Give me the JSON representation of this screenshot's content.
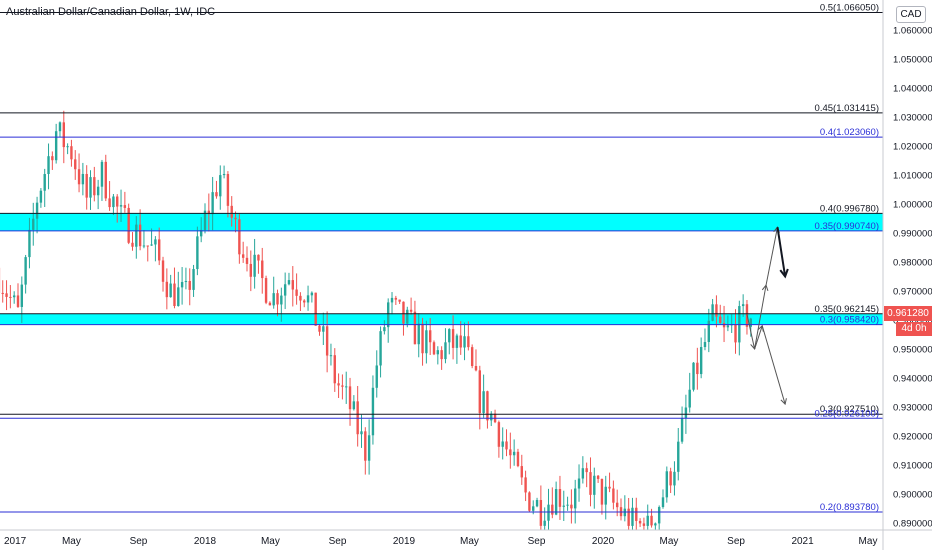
{
  "header": {
    "title": "Australian Dollar/Canadian Dollar, 1W, IDC",
    "currency": "CAD"
  },
  "price_badge": {
    "value": "0.961280",
    "countdown": "4d 0h"
  },
  "colors": {
    "up": "#26a69a",
    "down": "#ef5350",
    "zone": "#00ffff",
    "fib": "#2a2ed6",
    "line": "#131722",
    "axis_text": "#131722"
  },
  "chart_data": {
    "type": "candlestick",
    "title": "Australian Dollar/Canadian Dollar, 1W, IDC",
    "ylim": [
      0.888,
      1.069
    ],
    "y_ticks": [
      "1.060000",
      "1.050000",
      "1.040000",
      "1.030000",
      "1.020000",
      "1.010000",
      "1.000000",
      "0.990000",
      "0.980000",
      "0.970000",
      "0.960000",
      "0.950000",
      "0.940000",
      "0.930000",
      "0.920000",
      "0.910000",
      "0.900000",
      "0.890000"
    ],
    "x_ticks": [
      "2017",
      "May",
      "Sep",
      "2018",
      "May",
      "Sep",
      "2019",
      "May",
      "Sep",
      "2020",
      "May",
      "Sep",
      "2021",
      "May"
    ],
    "x_tick_dates": [
      "2017-01-01",
      "2017-05-01",
      "2017-09-01",
      "2018-01-01",
      "2018-05-01",
      "2018-09-01",
      "2019-01-01",
      "2019-05-01",
      "2019-09-01",
      "2020-01-01",
      "2020-05-01",
      "2020-09-01",
      "2021-01-01",
      "2021-05-01"
    ],
    "grid": false,
    "levels": [
      {
        "label": "0.5(1.066050)",
        "value": 1.06605,
        "color": "#131722"
      },
      {
        "label": "0.45(1.031415)",
        "value": 1.031415,
        "color": "#131722"
      },
      {
        "label": "0.4(1.023060)",
        "value": 1.02306,
        "color": "#2a2ed6"
      },
      {
        "label": "0.4(0.996780)",
        "value": 0.99678,
        "color": "#131722"
      },
      {
        "label": "0.35(0.990740)",
        "value": 0.99074,
        "color": "#2a2ed6"
      },
      {
        "label": "0.35(0.962145)",
        "value": 0.962145,
        "color": "#131722"
      },
      {
        "label": "0.3(0.958420)",
        "value": 0.95842,
        "color": "#2a2ed6"
      },
      {
        "label": "0.3(0.927510)",
        "value": 0.92751,
        "color": "#131722"
      },
      {
        "label": "0.25(0.926100)",
        "value": 0.9261,
        "color": "#2a2ed6"
      },
      {
        "label": "0.2(0.893780)",
        "value": 0.89378,
        "color": "#2a2ed6"
      }
    ],
    "zones": [
      {
        "from": 0.99074,
        "to": 0.99678
      },
      {
        "from": 0.95842,
        "to": 0.962145
      }
    ],
    "last_price": 0.96128,
    "price_path": [
      {
        "date": "2016-12-19",
        "price": 0.978
      },
      {
        "date": "2017-01-30",
        "price": 0.962
      },
      {
        "date": "2017-03-06",
        "price": 1.002
      },
      {
        "date": "2017-04-10",
        "price": 1.025
      },
      {
        "date": "2017-05-08",
        "price": 1.018
      },
      {
        "date": "2017-06-05",
        "price": 1.002
      },
      {
        "date": "2017-07-03",
        "price": 1.01
      },
      {
        "date": "2017-08-07",
        "price": 0.995
      },
      {
        "date": "2017-09-04",
        "price": 0.99
      },
      {
        "date": "2017-10-09",
        "price": 0.983
      },
      {
        "date": "2017-11-06",
        "price": 0.97
      },
      {
        "date": "2017-12-04",
        "price": 0.968
      },
      {
        "date": "2018-01-08",
        "price": 0.995
      },
      {
        "date": "2018-02-05",
        "price": 1.01
      },
      {
        "date": "2018-02-26",
        "price": 0.995
      },
      {
        "date": "2018-03-19",
        "price": 0.985
      },
      {
        "date": "2018-04-16",
        "price": 0.975
      },
      {
        "date": "2018-05-14",
        "price": 0.968
      },
      {
        "date": "2018-06-11",
        "price": 0.975
      },
      {
        "date": "2018-07-09",
        "price": 0.97
      },
      {
        "date": "2018-08-06",
        "price": 0.957
      },
      {
        "date": "2018-09-03",
        "price": 0.94
      },
      {
        "date": "2018-10-01",
        "price": 0.93
      },
      {
        "date": "2018-10-29",
        "price": 0.915
      },
      {
        "date": "2018-11-19",
        "price": 0.945
      },
      {
        "date": "2018-12-10",
        "price": 0.965
      },
      {
        "date": "2019-01-07",
        "price": 0.96
      },
      {
        "date": "2019-02-04",
        "price": 0.955
      },
      {
        "date": "2019-03-04",
        "price": 0.947
      },
      {
        "date": "2019-04-01",
        "price": 0.952
      },
      {
        "date": "2019-04-29",
        "price": 0.95
      },
      {
        "date": "2019-05-27",
        "price": 0.933
      },
      {
        "date": "2019-06-24",
        "price": 0.925
      },
      {
        "date": "2019-07-22",
        "price": 0.912
      },
      {
        "date": "2019-08-19",
        "price": 0.9
      },
      {
        "date": "2019-09-16",
        "price": 0.895
      },
      {
        "date": "2019-10-14",
        "price": 0.9
      },
      {
        "date": "2019-11-11",
        "price": 0.898
      },
      {
        "date": "2019-12-09",
        "price": 0.905
      },
      {
        "date": "2020-01-06",
        "price": 0.9
      },
      {
        "date": "2020-02-03",
        "price": 0.895
      },
      {
        "date": "2020-03-02",
        "price": 0.89
      },
      {
        "date": "2020-03-30",
        "price": 0.888
      },
      {
        "date": "2020-04-27",
        "price": 0.9
      },
      {
        "date": "2020-05-25",
        "price": 0.915
      },
      {
        "date": "2020-06-15",
        "price": 0.935
      },
      {
        "date": "2020-07-06",
        "price": 0.948
      },
      {
        "date": "2020-07-27",
        "price": 0.96
      },
      {
        "date": "2020-08-17",
        "price": 0.955
      },
      {
        "date": "2020-09-07",
        "price": 0.958
      },
      {
        "date": "2020-09-28",
        "price": 0.96128
      }
    ],
    "annotations": {
      "arrows": [
        {
          "from": {
            "date": "2020-10-05",
            "price": 0.95
          },
          "to": {
            "date": "2020-10-26",
            "price": 0.972
          },
          "color": "#555555",
          "width": 1
        },
        {
          "from": {
            "date": "2020-10-26",
            "price": 0.972
          },
          "to": {
            "date": "2020-11-16",
            "price": 0.992
          },
          "color": "#555555",
          "width": 1
        },
        {
          "from": {
            "date": "2020-11-16",
            "price": 0.992
          },
          "to": {
            "date": "2020-11-30",
            "price": 0.975
          },
          "color": "#131722",
          "width": 2
        },
        {
          "from": {
            "date": "2020-09-21",
            "price": 0.962
          },
          "to": {
            "date": "2020-10-05",
            "price": 0.95
          },
          "color": "#555555",
          "width": 1
        },
        {
          "from": {
            "date": "2020-10-05",
            "price": 0.95
          },
          "to": {
            "date": "2020-10-19",
            "price": 0.958
          },
          "color": "#555555",
          "width": 1
        },
        {
          "from": {
            "date": "2020-10-19",
            "price": 0.958
          },
          "to": {
            "date": "2020-11-30",
            "price": 0.931
          },
          "color": "#555555",
          "width": 1
        }
      ]
    }
  }
}
